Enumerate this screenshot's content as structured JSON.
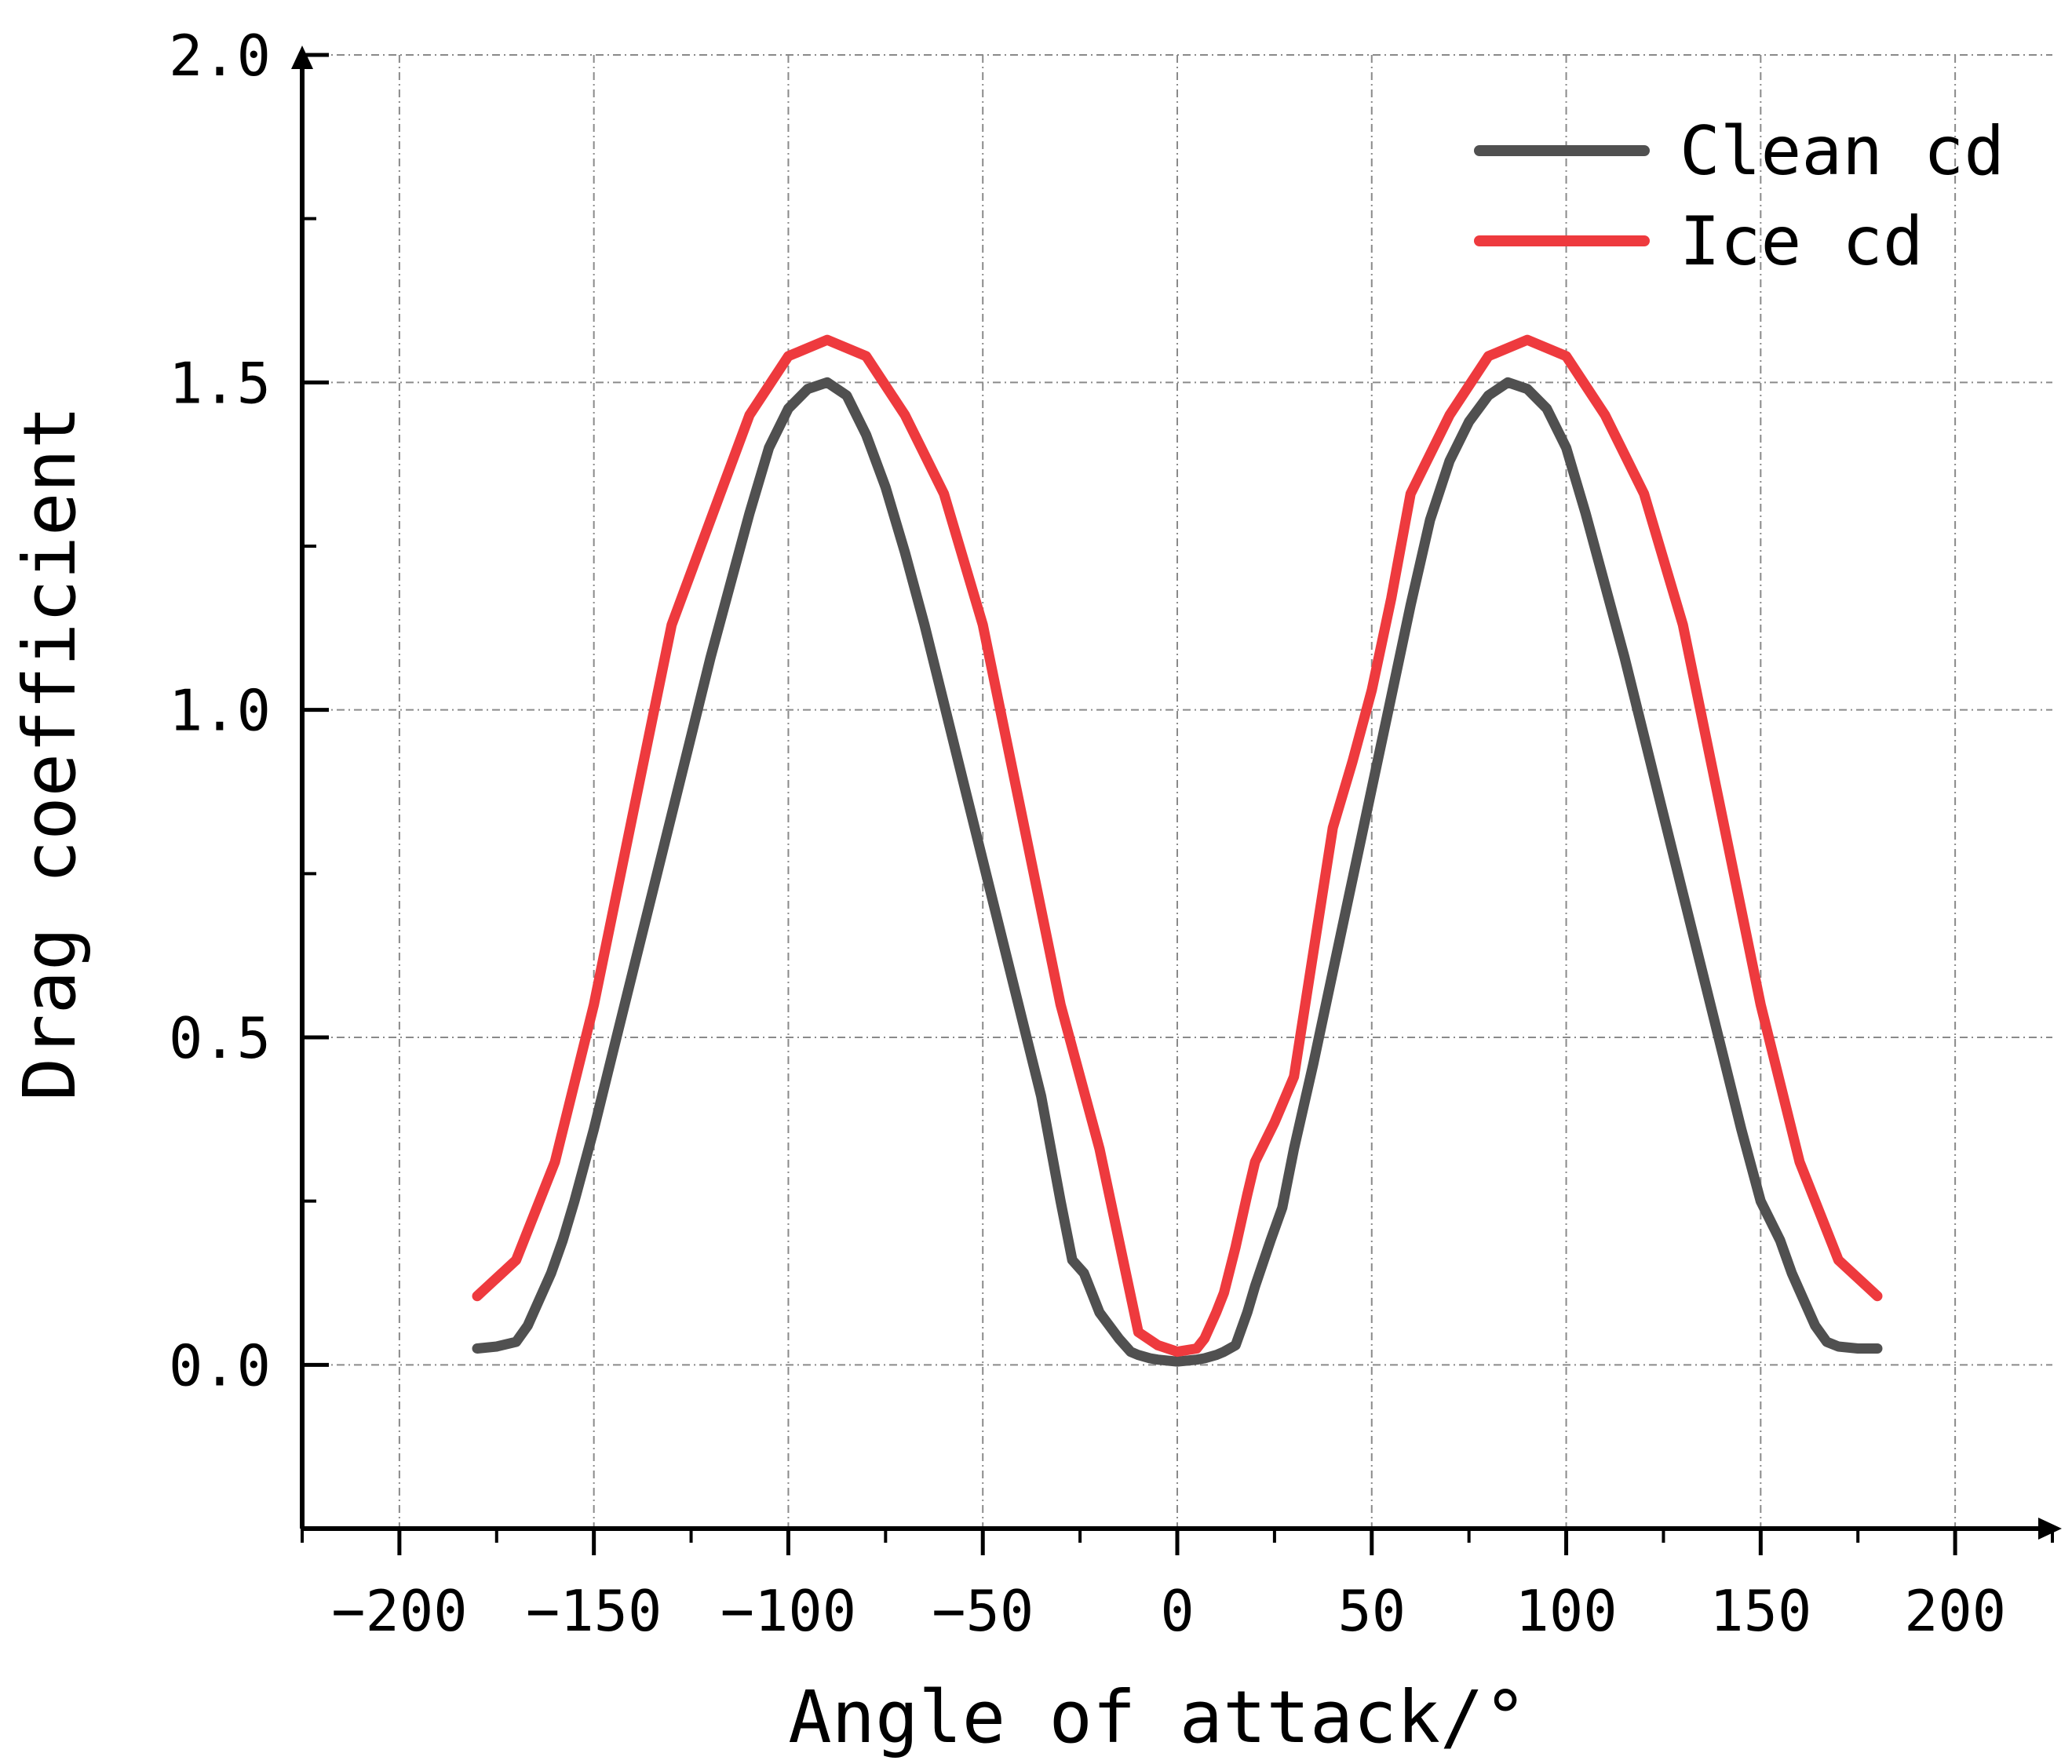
{
  "chart_data": {
    "type": "line",
    "title": "",
    "xlabel": "Angle of attack/°",
    "ylabel": "Drag coefficient",
    "xlim": [
      -225,
      225
    ],
    "ylim": [
      -0.25,
      2.0
    ],
    "xticks": [
      -200,
      -150,
      -100,
      -50,
      0,
      50,
      100,
      150,
      200
    ],
    "yticks": [
      0.0,
      0.5,
      1.0,
      1.5,
      2.0
    ],
    "xtick_labels": [
      "−200",
      "−150",
      "−100",
      "−50",
      "0",
      "50",
      "100",
      "150",
      "200"
    ],
    "ytick_labels": [
      "0.0",
      "0.5",
      "1.0",
      "1.5",
      "2.0"
    ],
    "grid": true,
    "legend_position": "top-right",
    "series": [
      {
        "name": "Clean cd",
        "color": "#505050",
        "x": [
          -180,
          -175,
          -170,
          -167,
          -164,
          -161,
          -158,
          -155,
          -150,
          -145,
          -140,
          -135,
          -130,
          -125,
          -120,
          -115,
          -110,
          -105,
          -100,
          -95,
          -90,
          -85,
          -80,
          -75,
          -70,
          -65,
          -60,
          -55,
          -50,
          -45,
          -40,
          -35,
          -30,
          -27,
          -24,
          -20,
          -15,
          -12,
          -10,
          -7,
          -5,
          0,
          5,
          7,
          10,
          12,
          15,
          18,
          20,
          24,
          27,
          30,
          35,
          40,
          45,
          50,
          55,
          60,
          65,
          70,
          75,
          80,
          85,
          90,
          95,
          100,
          105,
          110,
          115,
          120,
          125,
          130,
          135,
          140,
          145,
          150,
          155,
          158,
          161,
          164,
          167,
          170,
          175,
          180
        ],
        "y": [
          0.025,
          0.028,
          0.035,
          0.06,
          0.1,
          0.14,
          0.19,
          0.25,
          0.36,
          0.48,
          0.6,
          0.72,
          0.84,
          0.96,
          1.08,
          1.19,
          1.3,
          1.4,
          1.46,
          1.49,
          1.5,
          1.48,
          1.42,
          1.34,
          1.24,
          1.13,
          1.01,
          0.89,
          0.77,
          0.65,
          0.53,
          0.41,
          0.25,
          0.16,
          0.14,
          0.08,
          0.04,
          0.02,
          0.015,
          0.01,
          0.008,
          0.005,
          0.008,
          0.01,
          0.015,
          0.02,
          0.03,
          0.08,
          0.12,
          0.19,
          0.24,
          0.33,
          0.46,
          0.6,
          0.74,
          0.88,
          1.02,
          1.16,
          1.29,
          1.38,
          1.44,
          1.48,
          1.5,
          1.49,
          1.46,
          1.4,
          1.3,
          1.19,
          1.08,
          0.96,
          0.84,
          0.72,
          0.6,
          0.48,
          0.36,
          0.25,
          0.19,
          0.14,
          0.1,
          0.06,
          0.035,
          0.028,
          0.025,
          0.025
        ]
      },
      {
        "name": "Ice cd",
        "color": "#ee3a3e",
        "x": [
          -180,
          -170,
          -160,
          -150,
          -140,
          -130,
          -120,
          -110,
          -100,
          -90,
          -80,
          -70,
          -60,
          -50,
          -40,
          -30,
          -20,
          -10,
          -5,
          0,
          5,
          7,
          10,
          12,
          15,
          18,
          20,
          25,
          30,
          35,
          40,
          45,
          50,
          55,
          60,
          70,
          80,
          90,
          100,
          110,
          120,
          130,
          140,
          150,
          160,
          170,
          180
        ],
        "y": [
          0.105,
          0.16,
          0.31,
          0.55,
          0.84,
          1.13,
          1.29,
          1.45,
          1.54,
          1.565,
          1.54,
          1.45,
          1.33,
          1.13,
          0.84,
          0.55,
          0.33,
          0.05,
          0.03,
          0.02,
          0.025,
          0.04,
          0.08,
          0.11,
          0.18,
          0.26,
          0.31,
          0.37,
          0.44,
          0.63,
          0.82,
          0.92,
          1.03,
          1.17,
          1.33,
          1.45,
          1.54,
          1.565,
          1.54,
          1.45,
          1.33,
          1.13,
          0.84,
          0.55,
          0.31,
          0.16,
          0.105
        ]
      }
    ]
  }
}
